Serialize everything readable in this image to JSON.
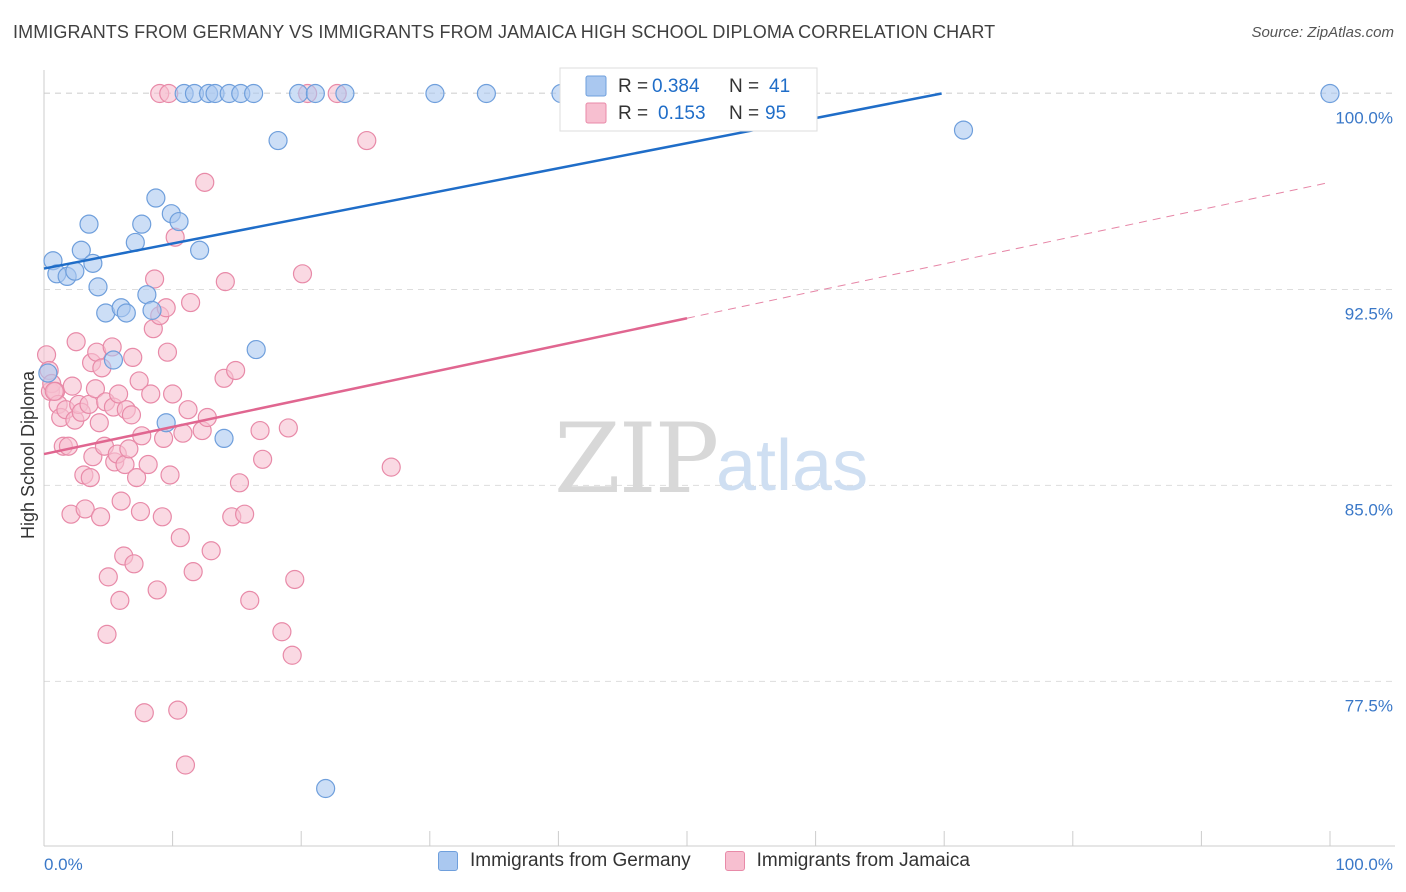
{
  "title": "IMMIGRANTS FROM GERMANY VS IMMIGRANTS FROM JAMAICA HIGH SCHOOL DIPLOMA CORRELATION CHART",
  "source": "Source: ZipAtlas.com",
  "watermark": {
    "zip": "ZIP",
    "atlas": "atlas"
  },
  "colors": {
    "germany_fill": "#aac8f0",
    "germany_stroke": "#6f9fdc",
    "germany_line": "#1f6dc8",
    "jamaica_fill": "#f7bfd0",
    "jamaica_stroke": "#e88aa8",
    "jamaica_line": "#e06690",
    "tick_label": "#3a78c8",
    "grid": "#dddddd"
  },
  "stats_legend": {
    "germany": {
      "r_label": "R = ",
      "r_value": "0.384",
      "n_label": "N = ",
      "n_value": "41"
    },
    "jamaica": {
      "r_label": "R = ",
      "r_value": "0.153",
      "n_label": "N = ",
      "n_value": "95"
    }
  },
  "chart_data": {
    "type": "scatter",
    "title": "IMMIGRANTS FROM GERMANY VS IMMIGRANTS FROM JAMAICA HIGH SCHOOL DIPLOMA CORRELATION CHART",
    "xlabel": "",
    "ylabel": "High School Diploma",
    "xlim": [
      0,
      100
    ],
    "ylim": [
      71.2,
      100.9
    ],
    "x_tick_labels": [
      "0.0%",
      "100.0%"
    ],
    "y_ticks": [
      77.5,
      85.0,
      92.5,
      100.0
    ],
    "y_tick_labels": [
      "77.5%",
      "85.0%",
      "92.5%",
      "100.0%"
    ],
    "grid": true,
    "series": [
      {
        "name": "Immigrants from Germany",
        "r": 0.384,
        "n": 41,
        "trend": {
          "x": [
            0,
            69.8
          ],
          "y": [
            93.3,
            100.0
          ],
          "dashed_extension": false
        },
        "points": [
          [
            0.3,
            89.3
          ],
          [
            0.7,
            93.6
          ],
          [
            1.0,
            93.1
          ],
          [
            1.8,
            93.0
          ],
          [
            2.4,
            93.2
          ],
          [
            2.9,
            94.0
          ],
          [
            3.8,
            93.5
          ],
          [
            3.5,
            95.0
          ],
          [
            4.2,
            92.6
          ],
          [
            4.8,
            91.6
          ],
          [
            5.4,
            89.8
          ],
          [
            6.0,
            91.8
          ],
          [
            6.4,
            91.6
          ],
          [
            7.1,
            94.3
          ],
          [
            7.6,
            95.0
          ],
          [
            8.0,
            92.3
          ],
          [
            8.4,
            91.7
          ],
          [
            8.7,
            96.0
          ],
          [
            9.5,
            87.4
          ],
          [
            9.9,
            95.4
          ],
          [
            10.5,
            95.1
          ],
          [
            10.9,
            100.0
          ],
          [
            11.7,
            100.0
          ],
          [
            12.1,
            94.0
          ],
          [
            12.8,
            100.0
          ],
          [
            13.3,
            100.0
          ],
          [
            14.0,
            86.8
          ],
          [
            14.4,
            100.0
          ],
          [
            15.3,
            100.0
          ],
          [
            16.3,
            100.0
          ],
          [
            16.5,
            90.2
          ],
          [
            18.2,
            98.2
          ],
          [
            19.8,
            100.0
          ],
          [
            21.1,
            100.0
          ],
          [
            21.9,
            73.4
          ],
          [
            23.4,
            100.0
          ],
          [
            30.4,
            100.0
          ],
          [
            34.4,
            100.0
          ],
          [
            40.2,
            100.0
          ],
          [
            71.5,
            98.6
          ],
          [
            100.0,
            100.0
          ]
        ]
      },
      {
        "name": "Immigrants from Jamaica",
        "r": 0.153,
        "n": 95,
        "trend": {
          "x": [
            0,
            50.0
          ],
          "y": [
            86.2,
            91.4
          ],
          "dashed_extension": {
            "x": [
              50.0,
              100.0
            ],
            "y": [
              91.4,
              96.6
            ]
          }
        },
        "points": [
          [
            0.2,
            90.0
          ],
          [
            0.4,
            89.4
          ],
          [
            0.5,
            88.6
          ],
          [
            0.6,
            88.9
          ],
          [
            0.9,
            88.6
          ],
          [
            1.1,
            88.1
          ],
          [
            1.3,
            87.6
          ],
          [
            1.5,
            86.5
          ],
          [
            1.7,
            87.9
          ],
          [
            1.9,
            86.5
          ],
          [
            2.1,
            83.9
          ],
          [
            2.2,
            88.8
          ],
          [
            2.4,
            87.5
          ],
          [
            2.5,
            90.5
          ],
          [
            2.7,
            88.1
          ],
          [
            2.9,
            87.8
          ],
          [
            3.1,
            85.4
          ],
          [
            3.2,
            84.1
          ],
          [
            3.5,
            88.1
          ],
          [
            3.6,
            85.3
          ],
          [
            3.7,
            89.7
          ],
          [
            3.8,
            86.1
          ],
          [
            4.0,
            88.7
          ],
          [
            4.1,
            90.1
          ],
          [
            4.3,
            87.4
          ],
          [
            4.4,
            83.8
          ],
          [
            4.5,
            89.5
          ],
          [
            4.7,
            86.5
          ],
          [
            4.8,
            88.2
          ],
          [
            4.9,
            79.3
          ],
          [
            5.0,
            81.5
          ],
          [
            5.3,
            90.3
          ],
          [
            5.4,
            88.0
          ],
          [
            5.5,
            85.9
          ],
          [
            5.7,
            86.2
          ],
          [
            5.8,
            88.5
          ],
          [
            5.9,
            80.6
          ],
          [
            6.0,
            84.4
          ],
          [
            6.2,
            82.3
          ],
          [
            6.3,
            85.8
          ],
          [
            6.4,
            87.9
          ],
          [
            6.6,
            86.4
          ],
          [
            6.8,
            87.7
          ],
          [
            6.9,
            89.9
          ],
          [
            7.0,
            82.0
          ],
          [
            7.2,
            85.3
          ],
          [
            7.4,
            89.0
          ],
          [
            7.5,
            84.0
          ],
          [
            7.6,
            86.9
          ],
          [
            7.8,
            76.3
          ],
          [
            8.1,
            85.8
          ],
          [
            8.3,
            88.5
          ],
          [
            8.5,
            91.0
          ],
          [
            8.6,
            92.9
          ],
          [
            8.8,
            81.0
          ],
          [
            9.0,
            91.5
          ],
          [
            9.2,
            83.8
          ],
          [
            9.3,
            86.8
          ],
          [
            9.5,
            91.8
          ],
          [
            9.6,
            90.1
          ],
          [
            9.8,
            85.4
          ],
          [
            10.0,
            88.5
          ],
          [
            10.2,
            94.5
          ],
          [
            10.4,
            76.4
          ],
          [
            10.6,
            83.0
          ],
          [
            10.8,
            87.0
          ],
          [
            11.0,
            74.3
          ],
          [
            11.2,
            87.9
          ],
          [
            11.4,
            92.0
          ],
          [
            11.6,
            81.7
          ],
          [
            12.3,
            87.1
          ],
          [
            12.5,
            96.6
          ],
          [
            12.7,
            87.6
          ],
          [
            13.0,
            82.5
          ],
          [
            14.0,
            89.1
          ],
          [
            14.1,
            92.8
          ],
          [
            14.6,
            83.8
          ],
          [
            14.9,
            89.4
          ],
          [
            15.2,
            85.1
          ],
          [
            15.6,
            83.9
          ],
          [
            16.0,
            80.6
          ],
          [
            16.8,
            87.1
          ],
          [
            17.0,
            86.0
          ],
          [
            18.5,
            79.4
          ],
          [
            19.0,
            87.2
          ],
          [
            19.3,
            78.5
          ],
          [
            19.5,
            81.4
          ],
          [
            20.1,
            93.1
          ],
          [
            20.5,
            100.0
          ],
          [
            22.8,
            100.0
          ],
          [
            25.1,
            98.2
          ],
          [
            27.0,
            85.7
          ],
          [
            9.0,
            100.0
          ],
          [
            9.7,
            100.0
          ],
          [
            0.8,
            88.6
          ]
        ]
      }
    ],
    "legend": [
      "Immigrants from Germany",
      "Immigrants from Jamaica"
    ],
    "legend_placement": "bottom-center",
    "stats_placement": "top-center"
  }
}
